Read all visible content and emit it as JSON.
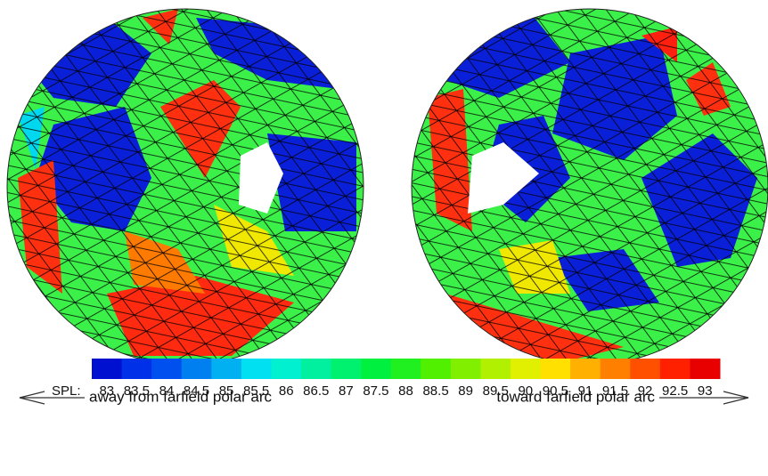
{
  "annotations": {
    "left": "away from farfield polar arc",
    "right": "toward farfield polar arc"
  },
  "colorbar": {
    "label": "SPL:",
    "ticks": [
      83,
      83.5,
      84,
      84.5,
      85,
      85.5,
      86,
      86.5,
      87,
      87.5,
      88,
      88.5,
      89,
      89.5,
      90,
      90.5,
      91,
      91.5,
      92,
      92.5,
      93
    ],
    "colors": [
      "#0010d0",
      "#0030e8",
      "#0050f0",
      "#0080f0",
      "#00b0f0",
      "#00e0f0",
      "#00f0d0",
      "#00f0a0",
      "#00f070",
      "#00f040",
      "#20f020",
      "#50f000",
      "#80f000",
      "#b0f000",
      "#e0f000",
      "#ffe000",
      "#ffb000",
      "#ff8000",
      "#ff5000",
      "#ff2000",
      "#e80000"
    ]
  }
}
